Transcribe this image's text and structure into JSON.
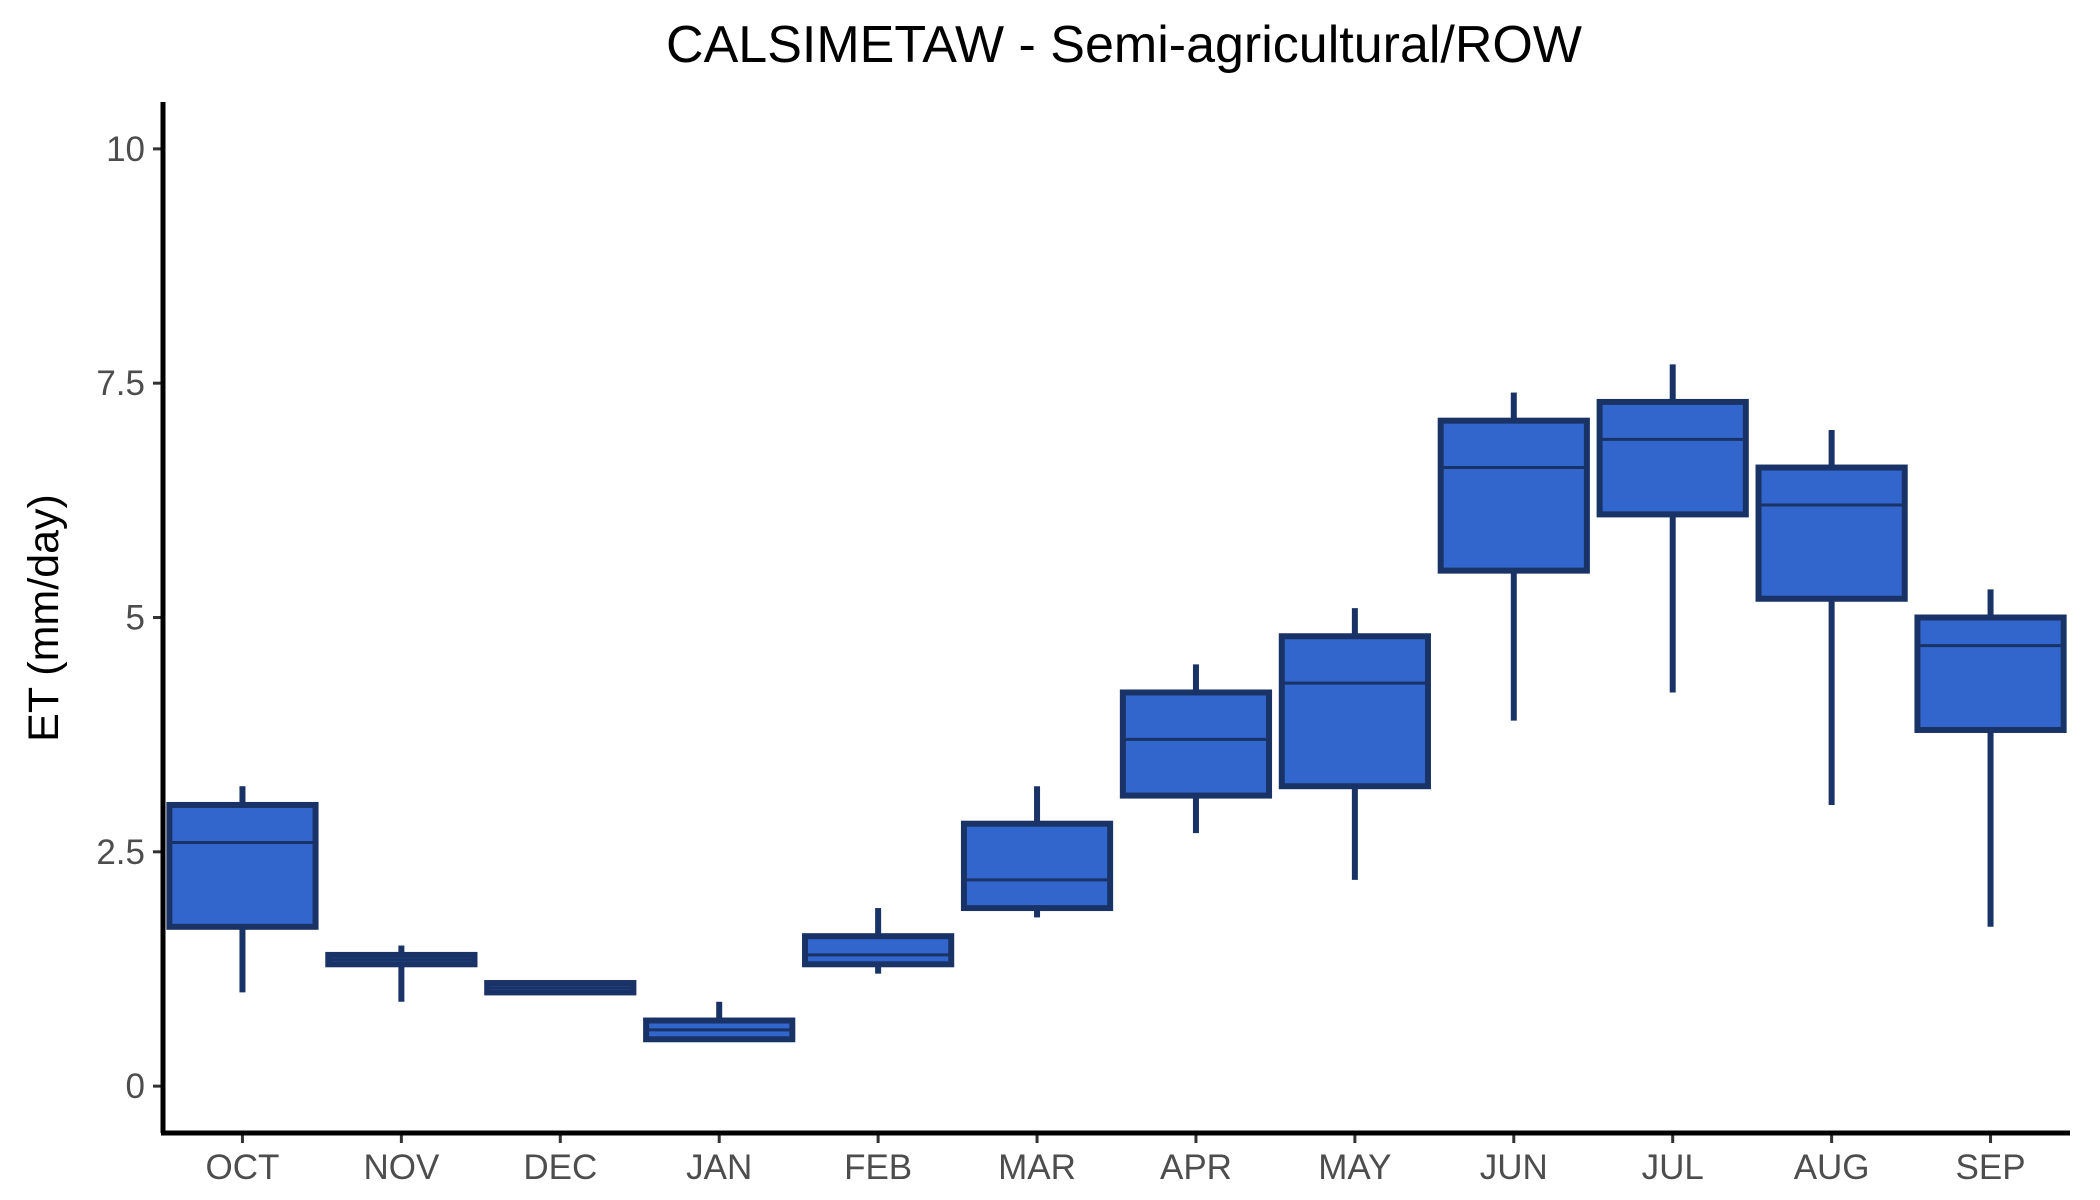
{
  "chart_data": {
    "type": "box",
    "title": "CALSIMETAW - Semi-agricultural/ROW",
    "xlabel": "",
    "ylabel": "ET (mm/day)",
    "ylim": [
      -0.5,
      10.5
    ],
    "yticks": [
      0,
      2.5,
      5,
      7.5,
      10
    ],
    "ytick_labels": [
      "0",
      "2.5",
      "5",
      "7.5",
      "10"
    ],
    "grid": false,
    "legend": "none",
    "colors": {
      "box_fill": "#3366cc",
      "box_stroke": "#1a3366"
    },
    "categories": [
      "OCT",
      "NOV",
      "DEC",
      "JAN",
      "FEB",
      "MAR",
      "APR",
      "MAY",
      "JUN",
      "JUL",
      "AUG",
      "SEP"
    ],
    "series": [
      {
        "min": [
          1.0,
          0.9,
          1.0,
          0.5,
          1.2,
          1.8,
          2.7,
          2.2,
          3.9,
          4.2,
          3.0,
          1.7
        ],
        "q1": [
          1.7,
          1.3,
          1.0,
          0.5,
          1.3,
          1.9,
          3.1,
          3.2,
          5.5,
          6.1,
          5.2,
          3.8
        ],
        "median": [
          2.6,
          1.35,
          1.05,
          0.6,
          1.4,
          2.2,
          3.7,
          4.3,
          6.6,
          6.9,
          6.2,
          4.7
        ],
        "q3": [
          3.0,
          1.4,
          1.1,
          0.7,
          1.6,
          2.8,
          4.2,
          4.8,
          7.1,
          7.3,
          6.6,
          5.0
        ],
        "max": [
          3.2,
          1.5,
          1.1,
          0.9,
          1.9,
          3.2,
          4.5,
          5.1,
          7.4,
          7.7,
          7.0,
          5.3
        ]
      }
    ]
  }
}
